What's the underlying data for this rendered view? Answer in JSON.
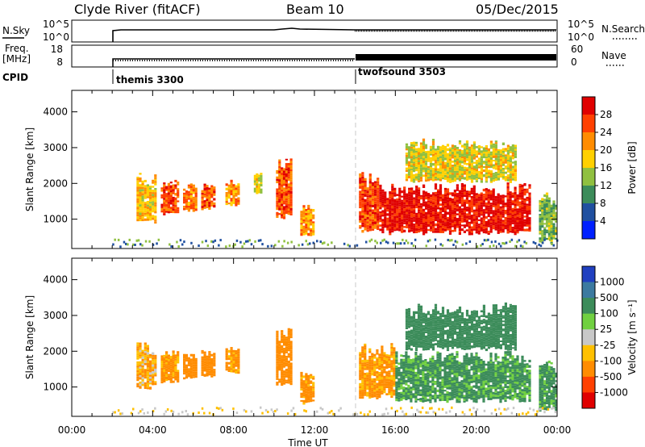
{
  "header": {
    "title_left": "Clyde River (fitACF)",
    "title_center": "Beam 10",
    "title_right": "05/Dec/2015"
  },
  "strip": {
    "nsky_label": "N.Sky",
    "nsky_ticks": [
      "10^5",
      "10^0"
    ],
    "nsearch_ticks": [
      "10^5",
      "10^0"
    ],
    "nsearch_label": "N.Search",
    "freq_label_1": "Freq.",
    "freq_label_2": "[MHz]",
    "freq_ticks": [
      "18",
      "8"
    ],
    "nave_ticks": [
      "60",
      "0"
    ],
    "nave_label": "Nave",
    "cpid_label": "CPID",
    "cpid_1": "themis 3300",
    "cpid_2": "twofsound 3503"
  },
  "x_axis": {
    "label": "Time UT",
    "ticks": [
      "00:00",
      "04:00",
      "08:00",
      "12:00",
      "16:00",
      "20:00",
      "00:00"
    ]
  },
  "colorbars": {
    "power": {
      "label": "Power [dB]",
      "ticks": [
        "28",
        "24",
        "20",
        "16",
        "12",
        "8",
        "4"
      ],
      "colors": [
        "#e00000",
        "#ff4000",
        "#ff8c00",
        "#ffd000",
        "#90c040",
        "#3c8c5a",
        "#2050a0",
        "#0020ff"
      ]
    },
    "velocity": {
      "label": "Velocity [m s⁻¹]",
      "ticks": [
        "1000",
        "500",
        "100",
        "25",
        "-25",
        "-100",
        "-500",
        "-1000"
      ],
      "colors": [
        "#2040c0",
        "#3c7aa0",
        "#3c8c5a",
        "#70d040",
        "#c8c8c8",
        "#ffc000",
        "#ff8c00",
        "#ff4000",
        "#e00000"
      ]
    }
  },
  "chart_data": [
    {
      "type": "heatmap",
      "title": "Power",
      "xlabel": "Time UT",
      "ylabel": "Slant Range [km]",
      "xlim": [
        0,
        24
      ],
      "ylim": [
        180,
        4600
      ],
      "yticks": [
        "4000",
        "3000",
        "2000",
        "1000"
      ],
      "colorbar_label": "Power [dB]",
      "colorbar_range": [
        0,
        30
      ],
      "events": [
        {
          "t0": 3.2,
          "t1": 4.2,
          "r0": 850,
          "r1": 2250,
          "value": 18
        },
        {
          "t0": 4.4,
          "t1": 5.3,
          "r0": 1100,
          "r1": 2050,
          "value": 24
        },
        {
          "t0": 5.5,
          "t1": 6.2,
          "r0": 1200,
          "r1": 2000,
          "value": 22
        },
        {
          "t0": 6.4,
          "t1": 7.1,
          "r0": 1250,
          "r1": 2000,
          "value": 24
        },
        {
          "t0": 7.6,
          "t1": 8.3,
          "r0": 1350,
          "r1": 2100,
          "value": 20
        },
        {
          "t0": 9.0,
          "t1": 9.4,
          "r0": 1700,
          "r1": 2300,
          "value": 16
        },
        {
          "t0": 10.1,
          "t1": 10.9,
          "r0": 1000,
          "r1": 2700,
          "value": 24
        },
        {
          "t0": 11.3,
          "t1": 12.0,
          "r0": 500,
          "r1": 1400,
          "value": 20
        },
        {
          "t0": 14.2,
          "t1": 15.2,
          "r0": 600,
          "r1": 2300,
          "value": 24
        },
        {
          "t0": 15.2,
          "t1": 22.7,
          "r0": 550,
          "r1": 2000,
          "value": 28
        },
        {
          "t0": 16.5,
          "t1": 22.0,
          "r0": 2000,
          "r1": 3200,
          "value": 16
        },
        {
          "t0": 23.1,
          "t1": 24.0,
          "r0": 300,
          "r1": 1700,
          "value": 12
        }
      ]
    },
    {
      "type": "heatmap",
      "title": "Velocity",
      "xlabel": "Time UT",
      "ylabel": "Slant Range [km]",
      "xlim": [
        0,
        24
      ],
      "ylim": [
        180,
        4600
      ],
      "yticks": [
        "4000",
        "3000",
        "2000",
        "1000"
      ],
      "colorbar_label": "Velocity [m s⁻¹]",
      "colorbar_range": [
        -1000,
        1000
      ],
      "events": [
        {
          "t0": 3.2,
          "t1": 4.2,
          "r0": 900,
          "r1": 2200,
          "value": -100
        },
        {
          "t0": 4.4,
          "t1": 5.3,
          "r0": 1100,
          "r1": 2050,
          "value": -150
        },
        {
          "t0": 5.5,
          "t1": 6.2,
          "r0": 1200,
          "r1": 2000,
          "value": -200
        },
        {
          "t0": 6.4,
          "t1": 7.1,
          "r0": 1250,
          "r1": 2000,
          "value": -200
        },
        {
          "t0": 7.6,
          "t1": 8.3,
          "r0": 1350,
          "r1": 2100,
          "value": -150
        },
        {
          "t0": 10.1,
          "t1": 10.9,
          "r0": 1000,
          "r1": 2700,
          "value": -200
        },
        {
          "t0": 11.3,
          "t1": 12.0,
          "r0": 500,
          "r1": 1400,
          "value": -150
        },
        {
          "t0": 14.2,
          "t1": 16.0,
          "r0": 650,
          "r1": 2200,
          "value": -150
        },
        {
          "t0": 16.0,
          "t1": 22.7,
          "r0": 550,
          "r1": 2000,
          "value": 150
        },
        {
          "t0": 16.5,
          "t1": 22.0,
          "r0": 2000,
          "r1": 3300,
          "value": 300
        },
        {
          "t0": 23.1,
          "t1": 24.0,
          "r0": 300,
          "r1": 1700,
          "value": 150
        }
      ]
    }
  ]
}
